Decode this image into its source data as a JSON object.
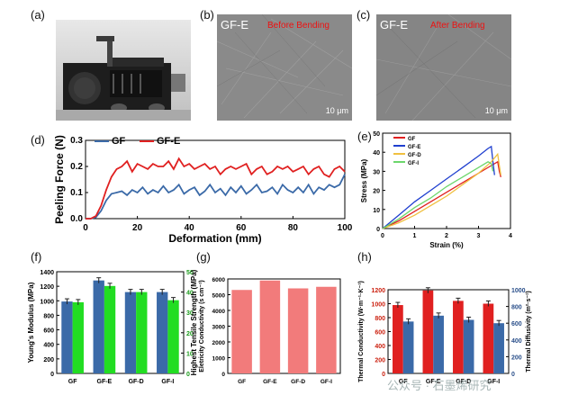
{
  "panel_letters": {
    "a": "(a)",
    "b": "(b)",
    "c": "(c)",
    "d": "(d)",
    "e": "(e)",
    "f": "(f)",
    "g": "(g)",
    "h": "(h)"
  },
  "sem_b": {
    "sample": "GF-E",
    "caption": "Before Bending",
    "scale": "10 μm"
  },
  "sem_c": {
    "sample": "GF-E",
    "caption": "After Bending",
    "scale": "10 μm"
  },
  "watermark": "公众号 · 石墨烯研究",
  "colors": {
    "blue": "#3b6aa8",
    "red": "#e02020",
    "green": "#22dd22",
    "salmon": "#f27b7b",
    "yellow": "#f0c040",
    "lightgreen": "#6cd66c"
  },
  "chart_data": [
    {
      "id": "d",
      "type": "line",
      "xlabel": "Deformation (mm)",
      "ylabel": "Peeling Force (N)",
      "xlim": [
        0,
        100
      ],
      "ylim": [
        0,
        0.3
      ],
      "xticks": [
        "0",
        "20",
        "40",
        "60",
        "80",
        "100"
      ],
      "yticks": [
        "0.0",
        "0.1",
        "0.2",
        "0.3"
      ],
      "legend": "top-left",
      "series": [
        {
          "name": "GF",
          "color": "#3b6aa8",
          "x": [
            0,
            2,
            4,
            6,
            8,
            10,
            12,
            14,
            16,
            18,
            20,
            22,
            24,
            26,
            28,
            30,
            32,
            34,
            36,
            38,
            40,
            42,
            44,
            46,
            48,
            50,
            52,
            54,
            56,
            58,
            60,
            62,
            64,
            66,
            68,
            70,
            72,
            74,
            76,
            78,
            80,
            82,
            84,
            86,
            88,
            90,
            92,
            94,
            96,
            98,
            100
          ],
          "y": [
            0,
            0,
            0.005,
            0.03,
            0.07,
            0.095,
            0.1,
            0.105,
            0.09,
            0.11,
            0.1,
            0.12,
            0.095,
            0.11,
            0.1,
            0.125,
            0.1,
            0.11,
            0.13,
            0.095,
            0.11,
            0.12,
            0.09,
            0.105,
            0.13,
            0.1,
            0.115,
            0.09,
            0.12,
            0.1,
            0.125,
            0.095,
            0.11,
            0.13,
            0.1,
            0.105,
            0.12,
            0.095,
            0.13,
            0.11,
            0.1,
            0.12,
            0.1,
            0.13,
            0.095,
            0.12,
            0.11,
            0.13,
            0.12,
            0.13,
            0.17
          ]
        },
        {
          "name": "GF-E",
          "color": "#e02020",
          "x": [
            0,
            2,
            4,
            6,
            8,
            10,
            12,
            14,
            16,
            18,
            20,
            22,
            24,
            26,
            28,
            30,
            32,
            34,
            36,
            38,
            40,
            42,
            44,
            46,
            48,
            50,
            52,
            54,
            56,
            58,
            60,
            62,
            64,
            66,
            68,
            70,
            72,
            74,
            76,
            78,
            80,
            82,
            84,
            86,
            88,
            90,
            92,
            94,
            96,
            98,
            100
          ],
          "y": [
            0,
            0,
            0.01,
            0.05,
            0.11,
            0.16,
            0.19,
            0.2,
            0.22,
            0.18,
            0.21,
            0.2,
            0.19,
            0.21,
            0.2,
            0.2,
            0.22,
            0.19,
            0.23,
            0.2,
            0.21,
            0.19,
            0.2,
            0.21,
            0.19,
            0.2,
            0.17,
            0.19,
            0.2,
            0.19,
            0.2,
            0.21,
            0.17,
            0.19,
            0.2,
            0.17,
            0.18,
            0.2,
            0.19,
            0.2,
            0.18,
            0.19,
            0.2,
            0.17,
            0.19,
            0.2,
            0.17,
            0.16,
            0.19,
            0.2,
            0.18
          ]
        }
      ]
    },
    {
      "id": "e",
      "type": "line",
      "xlabel": "Strain (%)",
      "ylabel": "Stress (MPa)",
      "xlim": [
        0,
        4
      ],
      "ylim": [
        0,
        50
      ],
      "xticks": [
        "0",
        "1",
        "2",
        "3",
        "4"
      ],
      "yticks": [
        "0",
        "10",
        "20",
        "30",
        "40",
        "50"
      ],
      "legend": "top-left",
      "series": [
        {
          "name": "GF",
          "color": "#e02020",
          "x": [
            0,
            0.5,
            1,
            1.5,
            2,
            2.5,
            3,
            3.4,
            3.6,
            3.65,
            3.7
          ],
          "y": [
            0,
            4,
            9,
            14,
            19,
            24,
            29,
            33,
            35,
            30,
            27
          ]
        },
        {
          "name": "GF-E",
          "color": "#1f3fcf",
          "x": [
            0,
            0.5,
            1,
            1.5,
            2,
            2.5,
            3,
            3.3,
            3.4,
            3.45,
            3.5
          ],
          "y": [
            0,
            7,
            14,
            20,
            26,
            32,
            38,
            42,
            43,
            35,
            28
          ]
        },
        {
          "name": "GF-D",
          "color": "#f0c040",
          "x": [
            0,
            0.5,
            1,
            1.5,
            2,
            2.5,
            3,
            3.4,
            3.6,
            3.65,
            3.7
          ],
          "y": [
            0,
            3,
            7,
            12,
            17,
            23,
            29,
            35,
            39,
            33,
            28
          ]
        },
        {
          "name": "GF-I",
          "color": "#6cd66c",
          "x": [
            0,
            0.5,
            1,
            1.5,
            2,
            2.5,
            3,
            3.3,
            3.4,
            3.45
          ],
          "y": [
            0,
            5,
            11,
            16,
            22,
            27,
            32,
            35,
            34,
            30
          ]
        }
      ]
    },
    {
      "id": "f",
      "type": "bar",
      "categories": [
        "GF",
        "GF-E",
        "GF-D",
        "GF-I"
      ],
      "ylabel": "Young's Modulus (MPa)",
      "ylabel2": "Highest Tensile Strength (MPa)",
      "ylim": [
        0,
        1400
      ],
      "ylim2": [
        0,
        50
      ],
      "yticks": [
        "0",
        "200",
        "400",
        "600",
        "800",
        "1000",
        "1200",
        "1400"
      ],
      "yticks2": [
        "0",
        "10",
        "20",
        "30",
        "40",
        "50"
      ],
      "series": [
        {
          "name": "Young's Modulus",
          "axis": "left",
          "color": "#3b6aa8",
          "values": [
            990,
            1280,
            1120,
            1120
          ]
        },
        {
          "name": "Tensile Strength",
          "axis": "right",
          "color": "#22dd22",
          "values": [
            35,
            43,
            40,
            36
          ]
        }
      ]
    },
    {
      "id": "g",
      "type": "bar",
      "categories": [
        "GF",
        "GF-E",
        "GF-D",
        "GF-I"
      ],
      "ylabel": "Eletricity Conductivity (s cm⁻¹)",
      "ylim": [
        0,
        6000
      ],
      "yticks": [
        "0",
        "1000",
        "2000",
        "3000",
        "4000",
        "5000",
        "6000"
      ],
      "series": [
        {
          "name": "Conductivity",
          "color": "#f27b7b",
          "values": [
            5300,
            5900,
            5400,
            5500
          ]
        }
      ]
    },
    {
      "id": "h",
      "type": "bar",
      "categories": [
        "GF",
        "GF-E",
        "GF-D",
        "GF-I"
      ],
      "ylabel": "Thermal Conductivity (W·m⁻¹·K⁻¹)",
      "ylabel2": "Thermal Diffusivity (m²·s⁻¹)",
      "ylim": [
        0,
        1200
      ],
      "ylim2": [
        0,
        1000
      ],
      "yticks": [
        "0",
        "200",
        "400",
        "600",
        "800",
        "1000",
        "1200"
      ],
      "yticks2": [
        "0",
        "200",
        "400",
        "600",
        "800",
        "1000"
      ],
      "series": [
        {
          "name": "Thermal Conductivity",
          "axis": "left",
          "color": "#e02020",
          "values": [
            980,
            1190,
            1040,
            1000
          ]
        },
        {
          "name": "Thermal Diffusivity",
          "axis": "right",
          "color": "#3b6aa8",
          "values": [
            620,
            690,
            640,
            600
          ]
        }
      ]
    }
  ]
}
